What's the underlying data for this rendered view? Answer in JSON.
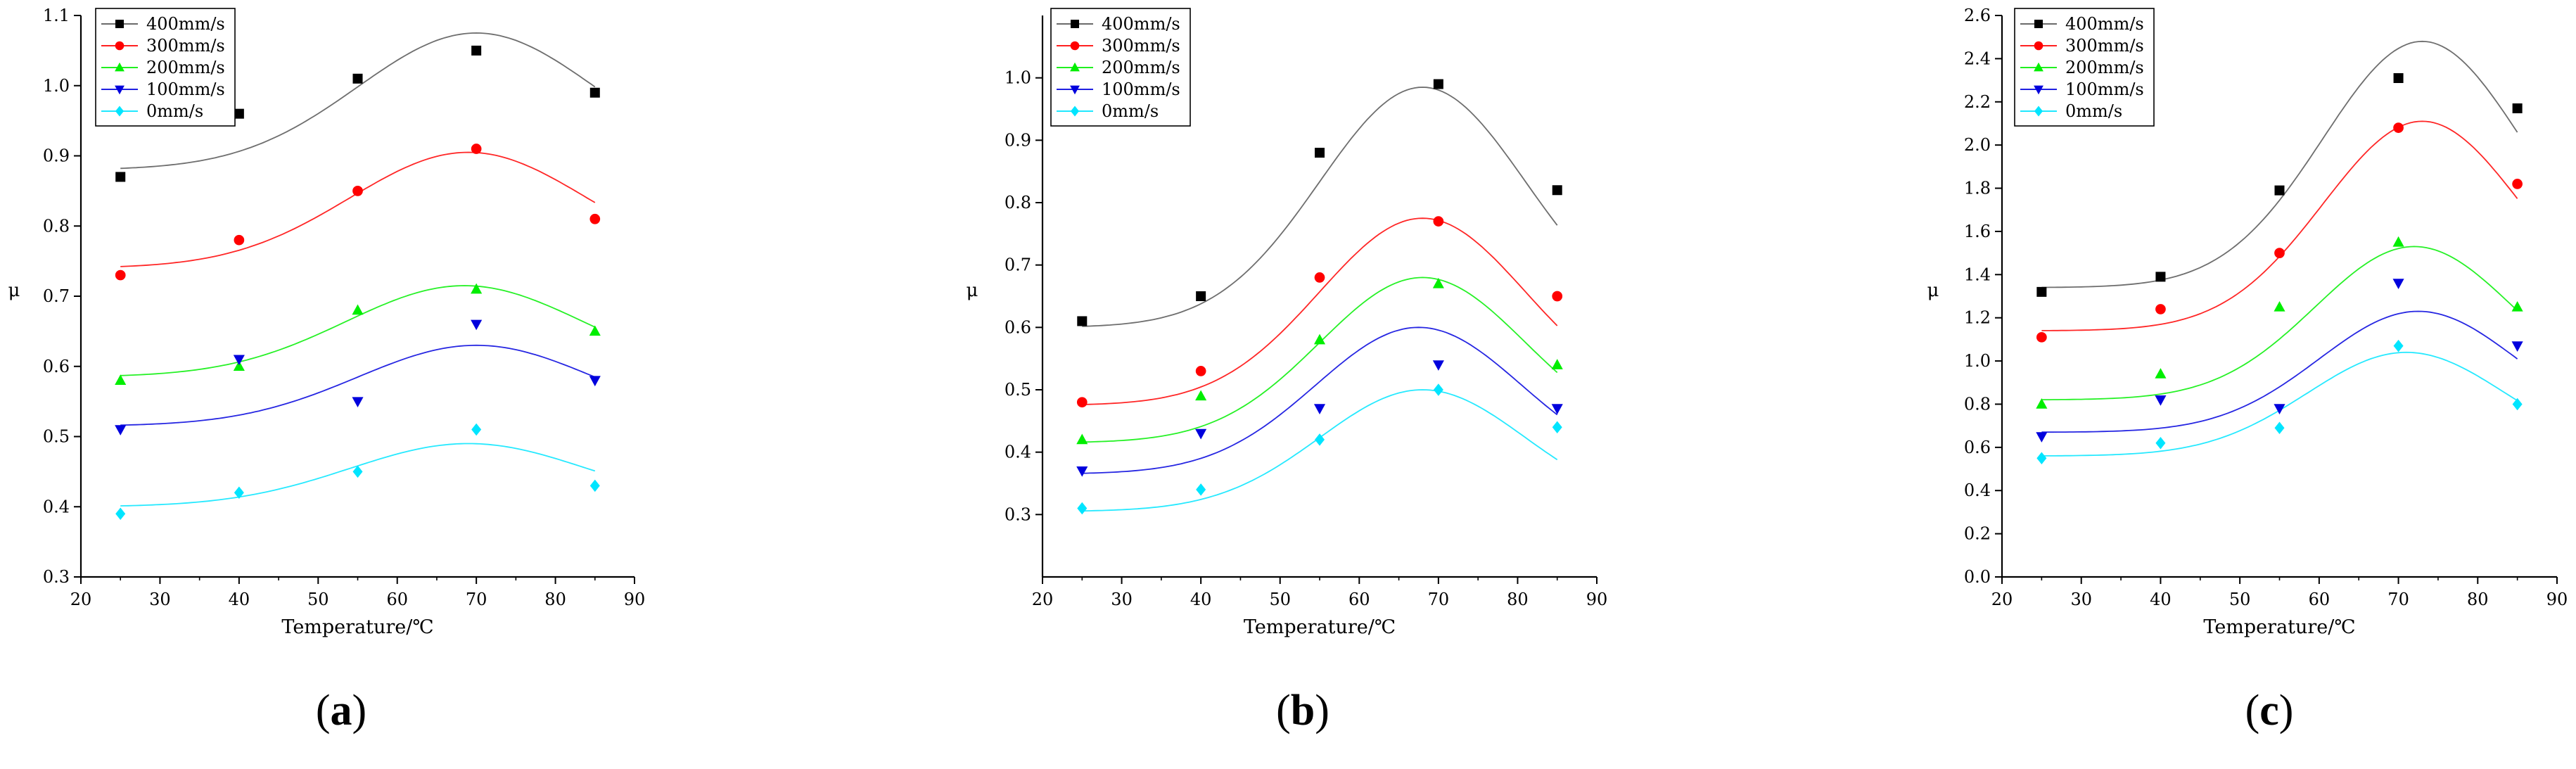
{
  "chart_data": [
    {
      "type": "scatter",
      "label_prefix": "(",
      "label_letter": "a",
      "label_suffix": ")",
      "xlabel": "Temperature/℃",
      "ylabel": "μ",
      "xlim": [
        20,
        90
      ],
      "ylim": [
        0.3,
        1.1
      ],
      "xticks": [
        20,
        30,
        40,
        50,
        60,
        70,
        80,
        90
      ],
      "yticks": [
        "0.3",
        "0.4",
        "0.5",
        "0.6",
        "0.7",
        "0.8",
        "0.9",
        "1.0",
        "1.1"
      ],
      "x": [
        25,
        40,
        55,
        70,
        85
      ],
      "series": [
        {
          "name": "400mm/s",
          "marker": "square",
          "color": "#000000",
          "values": [
            0.87,
            0.96,
            1.01,
            1.05,
            0.99
          ],
          "fit": {
            "y0": 0.88,
            "A": 0.195,
            "xc": 70,
            "w": 30
          }
        },
        {
          "name": "300mm/s",
          "marker": "circle",
          "color": "#ff0000",
          "values": [
            0.73,
            0.78,
            0.85,
            0.91,
            0.81
          ],
          "fit": {
            "y0": 0.74,
            "A": 0.165,
            "xc": 69,
            "w": 30
          }
        },
        {
          "name": "200mm/s",
          "marker": "triangle-up",
          "color": "#00ee00",
          "values": [
            0.58,
            0.6,
            0.68,
            0.71,
            0.65
          ],
          "fit": {
            "y0": 0.585,
            "A": 0.13,
            "xc": 68.5,
            "w": 30
          }
        },
        {
          "name": "100mm/s",
          "marker": "triangle-down",
          "color": "#0000dd",
          "values": [
            0.51,
            0.61,
            0.55,
            0.66,
            0.58
          ],
          "fit": {
            "y0": 0.515,
            "A": 0.115,
            "xc": 70,
            "w": 30
          }
        },
        {
          "name": "0mm/s",
          "marker": "diamond",
          "color": "#00e5ff",
          "values": [
            0.39,
            0.42,
            0.45,
            0.51,
            0.43
          ],
          "fit": {
            "y0": 0.4,
            "A": 0.09,
            "xc": 69,
            "w": 30
          }
        }
      ]
    },
    {
      "type": "scatter",
      "label_prefix": "(",
      "label_letter": "b",
      "label_suffix": ")",
      "xlabel": "Temperature/℃",
      "ylabel": "μ",
      "xlim": [
        20,
        90
      ],
      "ylim": [
        0.2,
        1.1
      ],
      "xticks": [
        20,
        30,
        40,
        50,
        60,
        70,
        80,
        90
      ],
      "yticks": [
        "0.3",
        "0.4",
        "0.5",
        "0.6",
        "0.7",
        "0.8",
        "0.9",
        "1.0"
      ],
      "x": [
        25,
        40,
        55,
        70,
        85
      ],
      "series": [
        {
          "name": "400mm/s",
          "marker": "square",
          "color": "#000000",
          "values": [
            0.61,
            0.65,
            0.88,
            0.99,
            0.82
          ],
          "fit": {
            "y0": 0.6,
            "A": 0.385,
            "xc": 68,
            "w": 26
          }
        },
        {
          "name": "300mm/s",
          "marker": "circle",
          "color": "#ff0000",
          "values": [
            0.48,
            0.53,
            0.68,
            0.77,
            0.65
          ],
          "fit": {
            "y0": 0.475,
            "A": 0.3,
            "xc": 68,
            "w": 26
          }
        },
        {
          "name": "200mm/s",
          "marker": "triangle-up",
          "color": "#00ee00",
          "values": [
            0.42,
            0.49,
            0.58,
            0.67,
            0.54
          ],
          "fit": {
            "y0": 0.415,
            "A": 0.265,
            "xc": 68,
            "w": 26
          }
        },
        {
          "name": "100mm/s",
          "marker": "triangle-down",
          "color": "#0000dd",
          "values": [
            0.37,
            0.43,
            0.47,
            0.54,
            0.47
          ],
          "fit": {
            "y0": 0.365,
            "A": 0.235,
            "xc": 67.5,
            "w": 26
          }
        },
        {
          "name": "0mm/s",
          "marker": "diamond",
          "color": "#00e5ff",
          "values": [
            0.31,
            0.34,
            0.42,
            0.5,
            0.44
          ],
          "fit": {
            "y0": 0.305,
            "A": 0.195,
            "xc": 68,
            "w": 26
          }
        }
      ]
    },
    {
      "type": "scatter",
      "label_prefix": "(",
      "label_letter": "c",
      "label_suffix": ")",
      "xlabel": "Temperature/℃",
      "ylabel": "μ",
      "xlim": [
        20,
        90
      ],
      "ylim": [
        0.0,
        2.6
      ],
      "xticks": [
        20,
        30,
        40,
        50,
        60,
        70,
        80,
        90
      ],
      "yticks": [
        "0.0",
        "0.2",
        "0.4",
        "0.6",
        "0.8",
        "1.0",
        "1.2",
        "1.4",
        "1.6",
        "1.8",
        "2.0",
        "2.2",
        "2.4",
        "2.6"
      ],
      "x": [
        25,
        40,
        55,
        70,
        85
      ],
      "series": [
        {
          "name": "400mm/s",
          "marker": "square",
          "color": "#000000",
          "values": [
            1.32,
            1.39,
            1.79,
            2.31,
            2.17
          ],
          "fit": {
            "y0": 1.34,
            "A": 1.14,
            "xc": 73,
            "w": 25
          }
        },
        {
          "name": "300mm/s",
          "marker": "circle",
          "color": "#ff0000",
          "values": [
            1.11,
            1.24,
            1.5,
            2.08,
            1.82
          ],
          "fit": {
            "y0": 1.14,
            "A": 0.97,
            "xc": 73,
            "w": 25
          }
        },
        {
          "name": "200mm/s",
          "marker": "triangle-up",
          "color": "#00ee00",
          "values": [
            0.8,
            0.94,
            1.25,
            1.55,
            1.25
          ],
          "fit": {
            "y0": 0.82,
            "A": 0.71,
            "xc": 72,
            "w": 25
          }
        },
        {
          "name": "100mm/s",
          "marker": "triangle-down",
          "color": "#0000dd",
          "values": [
            0.65,
            0.82,
            0.78,
            1.36,
            1.07
          ],
          "fit": {
            "y0": 0.67,
            "A": 0.56,
            "xc": 72.5,
            "w": 25
          }
        },
        {
          "name": "0mm/s",
          "marker": "diamond",
          "color": "#00e5ff",
          "values": [
            0.55,
            0.62,
            0.69,
            1.07,
            0.8
          ],
          "fit": {
            "y0": 0.56,
            "A": 0.48,
            "xc": 71,
            "w": 25
          }
        }
      ]
    }
  ]
}
